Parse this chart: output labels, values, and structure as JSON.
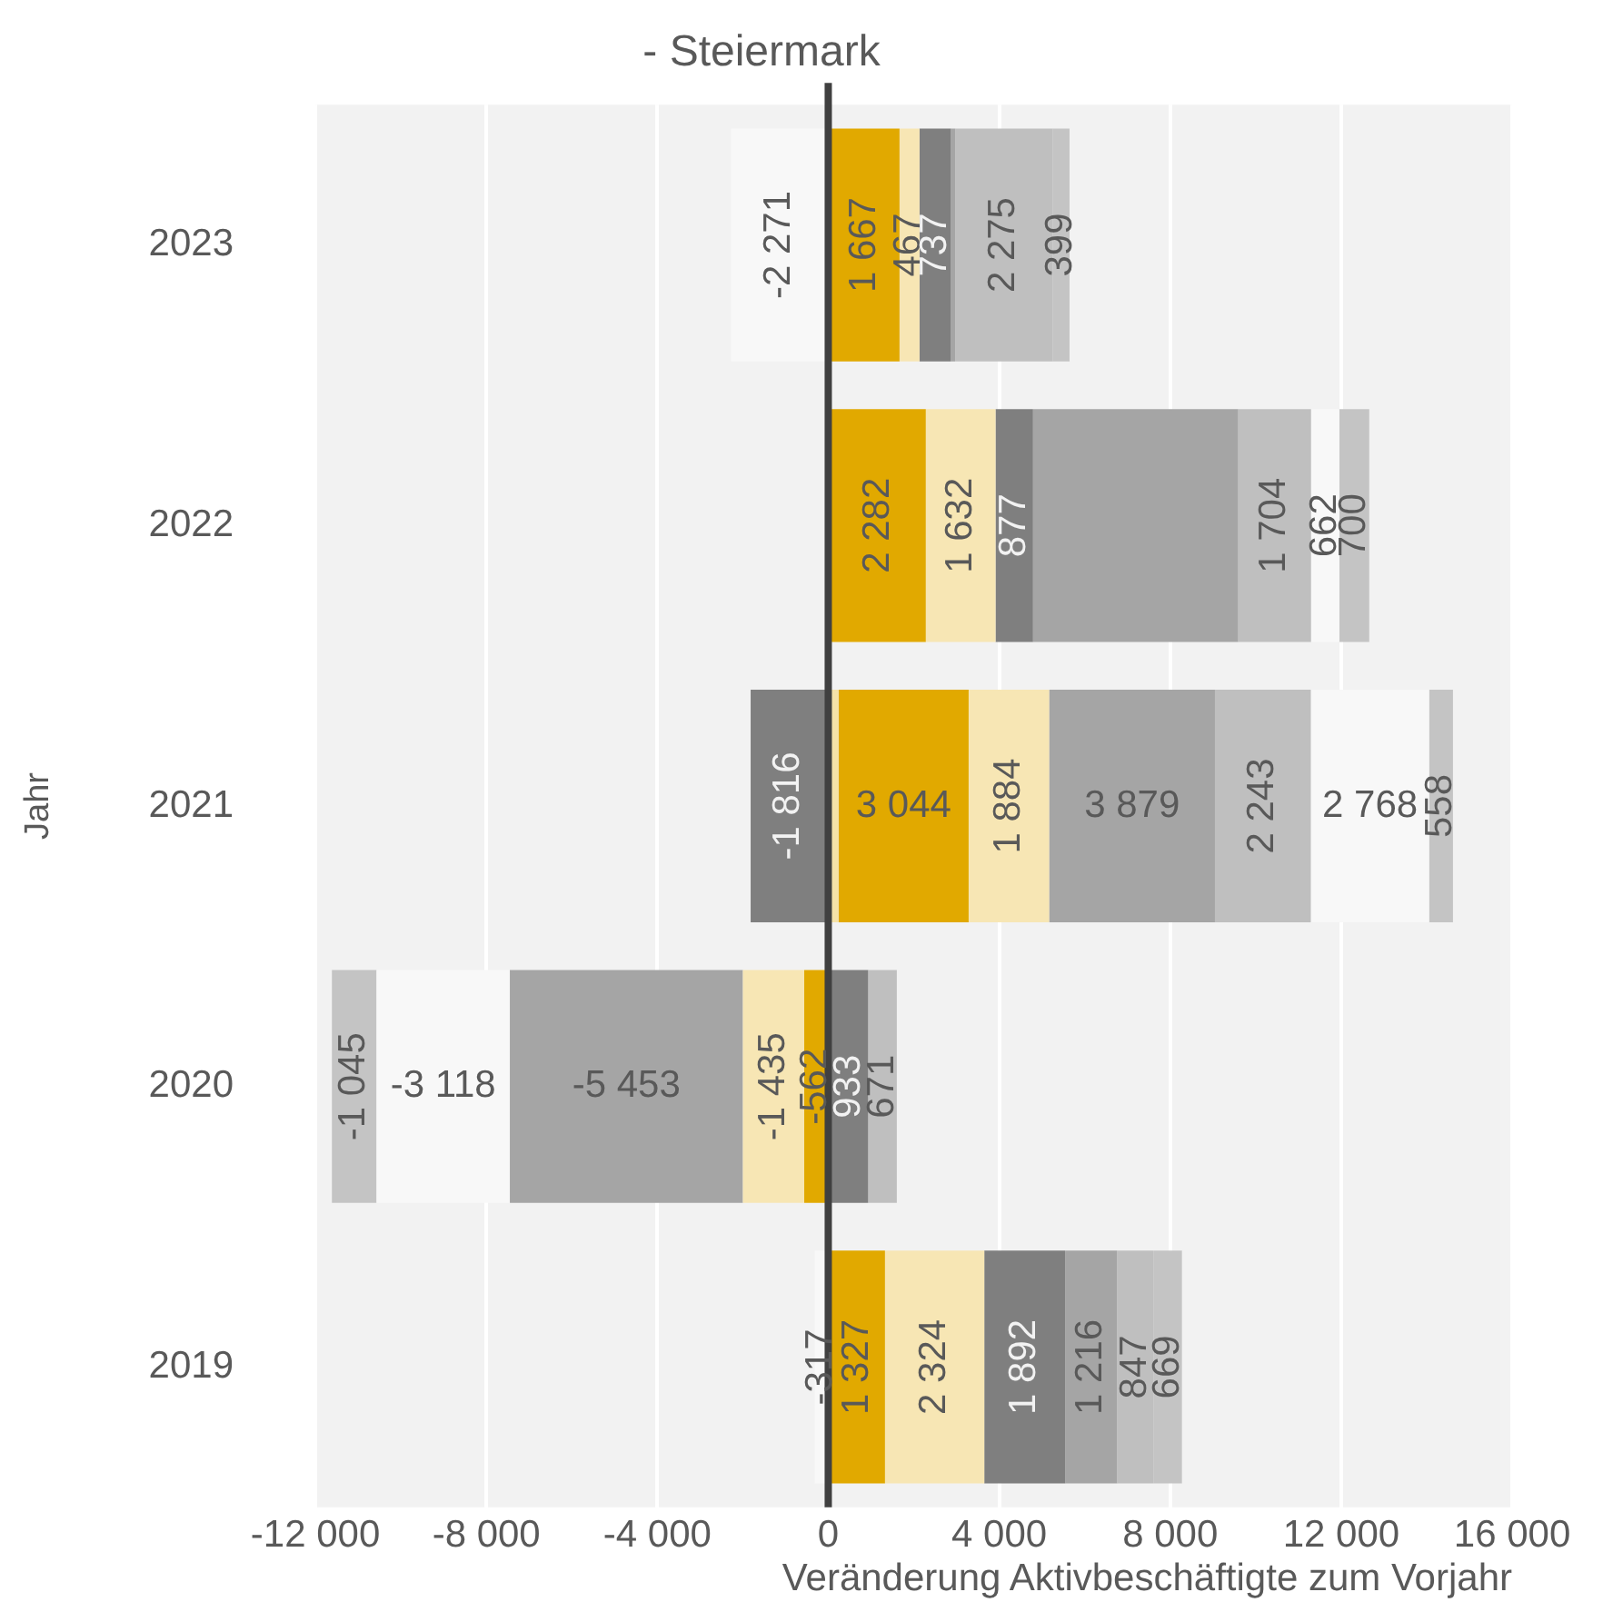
{
  "chart_data": {
    "type": "bar",
    "orientation": "horizontal",
    "stacked": true,
    "title": "- Steiermark",
    "xlabel": "Veränderung Aktivbeschäftigte zum Vorjahr",
    "ylabel": "Jahr",
    "categories": [
      "2023",
      "2022",
      "2021",
      "2020",
      "2019"
    ],
    "series": [
      {
        "color": "#f5e2a8",
        "values": [
          null,
          null,
          240,
          null,
          null
        ],
        "value_labels": [
          null,
          null,
          null,
          null,
          null
        ]
      },
      {
        "color": "#e1a900",
        "values": [
          1667,
          2282,
          3044,
          -562,
          1327
        ],
        "value_labels": [
          "1 667",
          "2 282",
          "3 044",
          "-562",
          "1 327"
        ]
      },
      {
        "color": "#f7e6b4",
        "values": [
          467,
          1632,
          1884,
          -1435,
          2324
        ],
        "value_labels": [
          "467",
          "1 632",
          "1 884",
          "-1 435",
          "2 324"
        ]
      },
      {
        "color": "#7f7f7f",
        "values": [
          737,
          877,
          -1816,
          933,
          1892
        ],
        "value_labels": [
          "737",
          "877",
          "-1 816",
          "933",
          "1 892"
        ]
      },
      {
        "color": "#a5a5a5",
        "values": [
          100,
          4800,
          3879,
          -5453,
          1216
        ],
        "value_labels": [
          null,
          null,
          "3 879",
          "-5 453",
          "1 216"
        ]
      },
      {
        "color": "#bfbfbf",
        "values": [
          2275,
          1704,
          2243,
          671,
          847
        ],
        "value_labels": [
          "2 275",
          "1 704",
          "2 243",
          "671",
          "847"
        ]
      },
      {
        "color": "#f8f8f8",
        "values": [
          -2271,
          662,
          2768,
          -3118,
          -317
        ],
        "value_labels": [
          "-2 271",
          "662",
          "2 768",
          "-3 118",
          "-317"
        ]
      },
      {
        "color": "#c4c4c4",
        "values": [
          399,
          700,
          558,
          -1045,
          669
        ],
        "value_labels": [
          "399",
          "700",
          "558",
          "-1 045",
          "669"
        ]
      }
    ],
    "xlim": [
      -12000,
      16000
    ],
    "xticks": [
      {
        "value": -12000,
        "label": "-12 000"
      },
      {
        "value": -8000,
        "label": "-8 000"
      },
      {
        "value": -4000,
        "label": "-4 000"
      },
      0,
      {
        "value": 4000,
        "label": "4 000"
      },
      {
        "value": 8000,
        "label": "8 000"
      },
      {
        "value": 12000,
        "label": "12 000"
      },
      {
        "value": 16000,
        "label": "16 000"
      }
    ],
    "ref_lines": [
      {
        "axis": "x",
        "value": 0,
        "color": "#404040"
      }
    ],
    "grid": "x",
    "legend": false
  }
}
